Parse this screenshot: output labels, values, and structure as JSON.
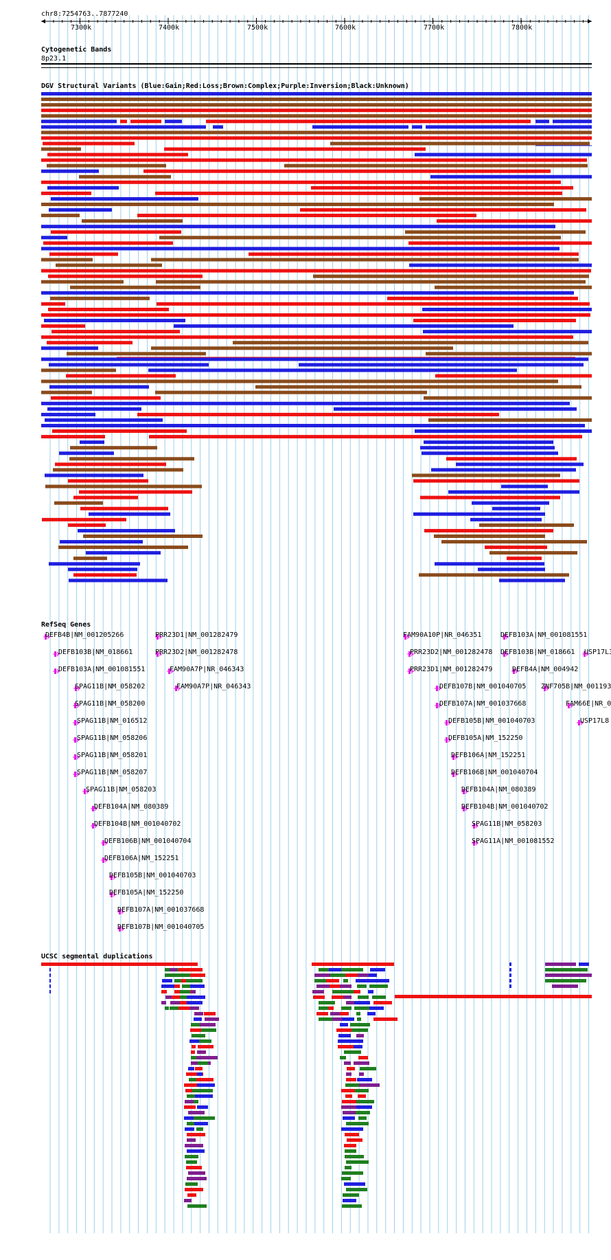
{
  "ruler": {
    "location": "chr8:7254763..7877240",
    "ticks": [
      "7300k",
      "7400k",
      "7500k",
      "7600k",
      "7700k",
      "7800k"
    ]
  },
  "colors": {
    "gain": "#1f1fe0",
    "loss": "#ee1111",
    "complex": "#8a4b1c",
    "inversion": "#7f1f8f",
    "unknown": "#000000",
    "gene": "#e61ee6",
    "segdup_green": "#1f7f1f",
    "grid": "#9cd0ee"
  },
  "tracks": {
    "cytoband": {
      "title": "Cytogenetic Bands",
      "band": "8p23.1"
    },
    "dgv": {
      "title": "DGV Structural Variants (Blue:Gain;Red:Loss;Brown:Complex;Purple:Inversion;Black:Unknown)"
    },
    "refseq": {
      "title": "RefSeq Genes"
    },
    "segdup": {
      "title": "UCSC segmental duplications"
    }
  },
  "genes": [
    {
      "label": "DEFB4B|NM_001205266"
    },
    {
      "label": "DEFB103B|NM_018661"
    },
    {
      "label": "DEFB103A|NM_001081551"
    },
    {
      "label": "SPAG11B|NM_058202"
    },
    {
      "label": "SPAG11B|NM_058200"
    },
    {
      "label": "SPAG11B|NM_016512"
    },
    {
      "label": "SPAG11B|NM_058206"
    },
    {
      "label": "SPAG11B|NM_058201"
    },
    {
      "label": "SPAG11B|NM_058207"
    },
    {
      "label": "SPAG11B|NM_058203"
    },
    {
      "label": "DEFB104A|NM_080389"
    },
    {
      "label": "DEFB104B|NM_001040702"
    },
    {
      "label": "DEFB106B|NM_001040704"
    },
    {
      "label": "DEFB106A|NM_152251"
    },
    {
      "label": "DEFB105B|NM_001040703"
    },
    {
      "label": "DEFB105A|NM_152250"
    },
    {
      "label": "DEFB107A|NM_001037668"
    },
    {
      "label": "DEFB107B|NM_001040705"
    },
    {
      "label": "PRR23D1|NM_001282479"
    },
    {
      "label": "PRR23D2|NM_001282478"
    },
    {
      "label": "FAM90A7P|NR_046343"
    },
    {
      "label": "FAM90A7P|NR_046343"
    },
    {
      "label": "FAM90A10P|NR_046351"
    },
    {
      "label": "PRR23D2|NM_001282478"
    },
    {
      "label": "PRR23D1|NM_001282479"
    },
    {
      "label": "DEFB107B|NM_001040705"
    },
    {
      "label": "DEFB107A|NM_001037668"
    },
    {
      "label": "DEFB105B|NM_001040703"
    },
    {
      "label": "DEFB105A|NM_152250"
    },
    {
      "label": "DEFB106A|NM_152251"
    },
    {
      "label": "DEFB106B|NM_001040704"
    },
    {
      "label": "DEFB104A|NM_080389"
    },
    {
      "label": "DEFB104B|NM_001040702"
    },
    {
      "label": "SPAG11B|NM_058203"
    },
    {
      "label": "SPAG11A|NM_001081552"
    },
    {
      "label": "DEFB103A|NM_001081551"
    },
    {
      "label": "DEFB103B|NM_018661"
    },
    {
      "label": "DEFB4A|NM_004942"
    },
    {
      "label": "ZNF705B|NM_001193"
    },
    {
      "label": "FAM66E|NR_0"
    },
    {
      "label": "USP17L3"
    },
    {
      "label": "USP17L8"
    }
  ]
}
